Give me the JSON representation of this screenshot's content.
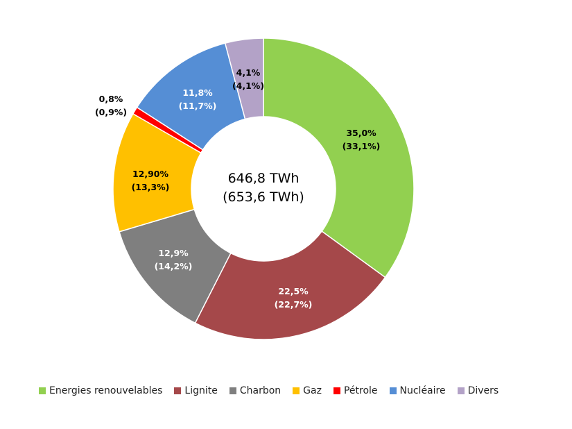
{
  "chart_data": {
    "type": "pie",
    "style": "donut",
    "center_text": [
      "646,8 TWh",
      "(653,6 TWh)"
    ],
    "categories": [
      "Energies renouvelables",
      "Lignite",
      "Charbon",
      "Gaz",
      "Pétrole",
      "Nucléaire",
      "Divers"
    ],
    "series": [
      {
        "values": [
          35.0,
          22.5,
          12.9,
          12.9,
          0.8,
          11.8,
          4.1
        ]
      },
      {
        "values": [
          33.1,
          22.7,
          14.2,
          13.3,
          0.9,
          11.7,
          4.1
        ]
      }
    ],
    "labels_primary": [
      "35,0%",
      "22,5%",
      "12,9%",
      "12,90%",
      "0,8%",
      "11,8%",
      "4,1%"
    ],
    "labels_secondary": [
      "(33,1%)",
      "(22,7%)",
      "(14,2%)",
      "(13,3%)",
      "(0,9%)",
      "(11,7%)",
      "(4,1%)"
    ],
    "colors": [
      "#92d050",
      "#a5484a",
      "#7f7f7f",
      "#ffc000",
      "#ff0000",
      "#558ed5",
      "#b3a2c7"
    ],
    "label_text_colors": [
      "#000000",
      "#ffffff",
      "#ffffff",
      "#000000",
      "#000000",
      "#ffffff",
      "#000000"
    ],
    "legend_position": "bottom"
  }
}
